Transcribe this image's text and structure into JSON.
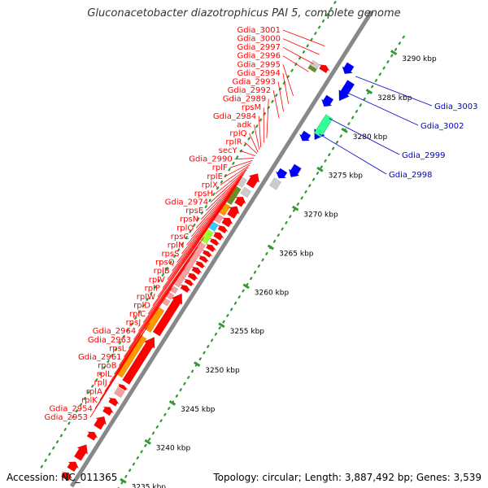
{
  "title": "Gluconacetobacter diazotrophicus PAI 5, complete genome",
  "footer": {
    "accession": "Accession: NC_011365",
    "topology": "Topology: circular; Length: 3,887,492 bp; Genes: 3,539"
  },
  "colors": {
    "forward_label": "#ff0000",
    "reverse_label": "#0000cc",
    "tick": "#339933",
    "axis": "#888888",
    "orange": "#ff9900",
    "olive": "#6b8e23",
    "mint": "#33ff99",
    "pink": "#f4a0a0",
    "lightgreen": "#99ff33",
    "sky": "#33ccff",
    "gray": "#cccccc",
    "red": "#ff0000",
    "blue": "#0000ff"
  },
  "ticks": [
    {
      "kbp": 3235,
      "label": "3235 kbp"
    },
    {
      "kbp": 3240,
      "label": "3240 kbp"
    },
    {
      "kbp": 3245,
      "label": "3245 kbp"
    },
    {
      "kbp": 3250,
      "label": "3250 kbp"
    },
    {
      "kbp": 3255,
      "label": "3255 kbp"
    },
    {
      "kbp": 3260,
      "label": "3260 kbp"
    },
    {
      "kbp": 3265,
      "label": "3265 kbp"
    },
    {
      "kbp": 3270,
      "label": "3270 kbp"
    },
    {
      "kbp": 3275,
      "label": "3275 kbp"
    },
    {
      "kbp": 3280,
      "label": "3280 kbp"
    },
    {
      "kbp": 3285,
      "label": "3285 kbp"
    },
    {
      "kbp": 3290,
      "label": "3290 kbp"
    }
  ],
  "forward_labels": [
    {
      "text": "Gdia_3001",
      "kbp": 3286.6
    },
    {
      "text": "Gdia_3000",
      "kbp": 3285.5
    },
    {
      "text": "Gdia_2997",
      "kbp": 3284.3
    },
    {
      "text": "Gdia_2996",
      "kbp": 3283.3
    },
    {
      "text": "Gdia_2995",
      "kbp": 3280.2
    },
    {
      "text": "Gdia_2994",
      "kbp": 3279.2
    },
    {
      "text": "Gdia_2993",
      "kbp": 3278.2
    },
    {
      "text": "Gdia_2992",
      "kbp": 3277.3
    },
    {
      "text": "Gdia_2989",
      "kbp": 3274.8
    },
    {
      "text": "rpsM",
      "kbp": 3274.2
    },
    {
      "text": "Gdia_2984",
      "kbp": 3273.6
    },
    {
      "text": "adk",
      "kbp": 3273.3
    },
    {
      "text": "rplQ",
      "kbp": 3273.0
    },
    {
      "text": "rplR",
      "kbp": 3272.8
    },
    {
      "text": "secY",
      "kbp": 3272.5
    },
    {
      "text": "Gdia_2990",
      "kbp": 3272.2
    },
    {
      "text": "rplF",
      "kbp": 3271.9
    },
    {
      "text": "rplE",
      "kbp": 3271.6
    },
    {
      "text": "rplX",
      "kbp": 3271.3
    },
    {
      "text": "rpsH",
      "kbp": 3271.0
    },
    {
      "text": "Gdia_2974",
      "kbp": 3270.7
    },
    {
      "text": "rpsE",
      "kbp": 3270.4
    },
    {
      "text": "rpsN",
      "kbp": 3270.1
    },
    {
      "text": "rplO",
      "kbp": 3269.8
    },
    {
      "text": "rpsC",
      "kbp": 3269.5
    },
    {
      "text": "rplN",
      "kbp": 3269.2
    },
    {
      "text": "rpsS",
      "kbp": 3268.9
    },
    {
      "text": "rpsQ",
      "kbp": 3268.6
    },
    {
      "text": "rplB",
      "kbp": 3268.3
    },
    {
      "text": "rplV",
      "kbp": 3268.0
    },
    {
      "text": "rplP",
      "kbp": 3267.7
    },
    {
      "text": "rplW",
      "kbp": 3267.4
    },
    {
      "text": "rplD",
      "kbp": 3267.0
    },
    {
      "text": "rplC",
      "kbp": 3266.6
    },
    {
      "text": "rpsJ",
      "kbp": 3262.0
    },
    {
      "text": "Gdia_2964",
      "kbp": 3260.8
    },
    {
      "text": "Gdia_2963",
      "kbp": 3260.0
    },
    {
      "text": "rpsL",
      "kbp": 3259.2
    },
    {
      "text": "Gdia_2961",
      "kbp": 3258.2
    },
    {
      "text": "rpoB",
      "kbp": 3255.5
    },
    {
      "text": "rplL",
      "kbp": 3251.0
    },
    {
      "text": "rplJ",
      "kbp": 3250.4
    },
    {
      "text": "rplA",
      "kbp": 3249.6
    },
    {
      "text": "rplK",
      "kbp": 3248.9
    },
    {
      "text": "Gdia_2954",
      "kbp": 3247.6
    },
    {
      "text": "Gdia_2953",
      "kbp": 3246.6
    }
  ],
  "reverse_labels": [
    {
      "text": "Gdia_3003",
      "kbp": 3285.6
    },
    {
      "text": "Gdia_3002",
      "kbp": 3283.6
    },
    {
      "text": "Gdia_2999",
      "kbp": 3280.2
    },
    {
      "text": "Gdia_2998",
      "kbp": 3278.2
    }
  ],
  "forward_genes": [
    {
      "start": 3231.8,
      "end": 3232.6,
      "color": "red",
      "arrow": true
    },
    {
      "start": 3233.0,
      "end": 3234.0,
      "color": "red",
      "arrow": true
    },
    {
      "start": 3234.4,
      "end": 3236.2,
      "color": "red",
      "arrow": true
    },
    {
      "start": 3237.0,
      "end": 3237.8,
      "color": "red",
      "arrow": true
    },
    {
      "start": 3238.4,
      "end": 3239.8,
      "color": "red",
      "arrow": true
    },
    {
      "start": 3240.2,
      "end": 3241.0,
      "color": "red",
      "arrow": true
    },
    {
      "start": 3241.4,
      "end": 3242.1,
      "color": "red",
      "arrow": true
    },
    {
      "start": 3242.5,
      "end": 3243.3,
      "color": "pink",
      "arrow": false
    },
    {
      "start": 3243.4,
      "end": 3243.8,
      "color": "red",
      "arrow": true
    },
    {
      "start": 3244.2,
      "end": 3250.0,
      "color": "red",
      "arrow": true
    },
    {
      "start": 3244.4,
      "end": 3249.4,
      "color": "orange",
      "arrow": false,
      "lane": 1
    },
    {
      "start": 3250.4,
      "end": 3255.6,
      "color": "red",
      "arrow": true
    },
    {
      "start": 3250.2,
      "end": 3253.0,
      "color": "orange",
      "arrow": false,
      "lane": 1
    },
    {
      "start": 3253.6,
      "end": 3254.2,
      "color": "pink",
      "arrow": false,
      "lane": 1
    },
    {
      "start": 3254.4,
      "end": 3255.0,
      "color": "pink",
      "arrow": false,
      "lane": 1
    },
    {
      "start": 3255.2,
      "end": 3255.8,
      "color": "pink",
      "arrow": false,
      "lane": 1
    },
    {
      "start": 3256.0,
      "end": 3256.6,
      "color": "red",
      "arrow": true
    },
    {
      "start": 3256.8,
      "end": 3257.3,
      "color": "red",
      "arrow": true
    },
    {
      "start": 3257.5,
      "end": 3258.1,
      "color": "red",
      "arrow": true
    },
    {
      "start": 3256.0,
      "end": 3261.4,
      "color": "pink",
      "arrow": false,
      "lane": 1
    },
    {
      "start": 3258.3,
      "end": 3258.9,
      "color": "red",
      "arrow": true
    },
    {
      "start": 3259.1,
      "end": 3259.6,
      "color": "red",
      "arrow": true
    },
    {
      "start": 3259.8,
      "end": 3260.3,
      "color": "red",
      "arrow": true
    },
    {
      "start": 3260.5,
      "end": 3261.0,
      "color": "red",
      "arrow": true
    },
    {
      "start": 3261.2,
      "end": 3261.8,
      "color": "red",
      "arrow": true
    },
    {
      "start": 3262.0,
      "end": 3262.5,
      "color": "red",
      "arrow": true
    },
    {
      "start": 3262.7,
      "end": 3263.4,
      "color": "red",
      "arrow": true
    },
    {
      "start": 3261.6,
      "end": 3263.0,
      "color": "lightgreen",
      "arrow": false,
      "lane": 1
    },
    {
      "start": 3263.2,
      "end": 3264.0,
      "color": "sky",
      "arrow": false,
      "lane": 1
    },
    {
      "start": 3263.6,
      "end": 3264.2,
      "color": "red",
      "arrow": true
    },
    {
      "start": 3264.2,
      "end": 3265.0,
      "color": "pink",
      "arrow": false,
      "lane": 1
    },
    {
      "start": 3264.4,
      "end": 3265.3,
      "color": "red",
      "arrow": true
    },
    {
      "start": 3265.2,
      "end": 3266.4,
      "color": "orange",
      "arrow": false,
      "lane": 1
    },
    {
      "start": 3265.5,
      "end": 3266.8,
      "color": "red",
      "arrow": true
    },
    {
      "start": 3266.6,
      "end": 3268.6,
      "color": "olive",
      "arrow": false,
      "lane": 1
    },
    {
      "start": 3267.0,
      "end": 3268.0,
      "color": "red",
      "arrow": true
    },
    {
      "start": 3268.2,
      "end": 3269.0,
      "color": "gray",
      "arrow": false
    },
    {
      "start": 3268.8,
      "end": 3269.8,
      "color": "gray",
      "arrow": false,
      "lane": 1
    },
    {
      "start": 3269.4,
      "end": 3271.0,
      "color": "red",
      "arrow": true
    },
    {
      "start": 3283.6,
      "end": 3284.2,
      "color": "olive",
      "arrow": false,
      "lane": 1
    },
    {
      "start": 3284.0,
      "end": 3284.6,
      "color": "gray",
      "arrow": false,
      "lane": 1
    },
    {
      "start": 3284.2,
      "end": 3284.9,
      "color": "red",
      "arrow": true
    }
  ],
  "reverse_genes": [
    {
      "start": 3270.6,
      "end": 3271.6,
      "color": "gray",
      "arrow": false
    },
    {
      "start": 3271.8,
      "end": 3272.8,
      "color": "blue",
      "arrow": true
    },
    {
      "start": 3272.6,
      "end": 3274.0,
      "color": "blue",
      "arrow": true,
      "lane": 1
    },
    {
      "start": 3276.6,
      "end": 3277.6,
      "color": "blue",
      "arrow": true
    },
    {
      "start": 3277.4,
      "end": 3280.0,
      "color": "blue",
      "arrow": true,
      "lane": 1
    },
    {
      "start": 3278.0,
      "end": 3280.4,
      "color": "mint",
      "arrow": false,
      "lane": 1
    },
    {
      "start": 3281.0,
      "end": 3282.2,
      "color": "blue",
      "arrow": true
    },
    {
      "start": 3282.4,
      "end": 3284.8,
      "color": "blue",
      "arrow": true,
      "lane": 1
    },
    {
      "start": 3285.2,
      "end": 3286.4,
      "color": "blue",
      "arrow": true
    }
  ]
}
